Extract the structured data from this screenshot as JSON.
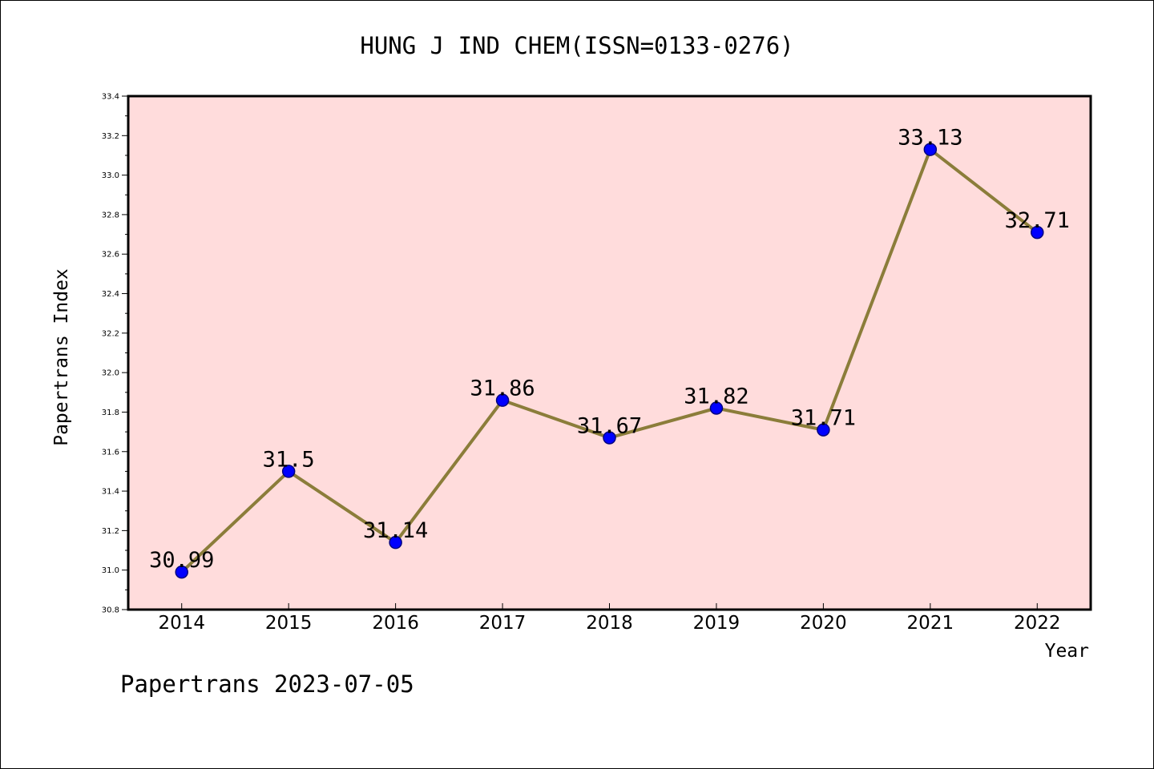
{
  "chart_data": {
    "type": "line",
    "title": "HUNG J IND CHEM(ISSN=0133-0276)",
    "xlabel": "Year",
    "ylabel": "Papertrans Index",
    "footer": "Papertrans 2023-07-05",
    "categories": [
      "2014",
      "2015",
      "2016",
      "2017",
      "2018",
      "2019",
      "2020",
      "2021",
      "2022"
    ],
    "series": [
      {
        "values": [
          30.99,
          31.5,
          31.14,
          31.86,
          31.67,
          31.82,
          31.71,
          33.13,
          32.71
        ],
        "labels": [
          "30.99",
          "31.5",
          "31.14",
          "31.86",
          "31.67",
          "31.82",
          "31.71",
          "33.13",
          "32.71"
        ]
      }
    ],
    "ylim": [
      30.8,
      33.4
    ],
    "yticks": [
      "30.8",
      "31.0",
      "31.2",
      "31.4",
      "31.6",
      "31.8",
      "32.0",
      "32.2",
      "32.4",
      "32.6",
      "32.8",
      "33.0",
      "33.2",
      "33.4"
    ],
    "grid": false,
    "legend": "none",
    "colors": {
      "plot_background": "#ffdcdc",
      "line": "#8b7d3a",
      "marker_fill": "#0000ff",
      "marker_stroke": "#000080"
    }
  }
}
